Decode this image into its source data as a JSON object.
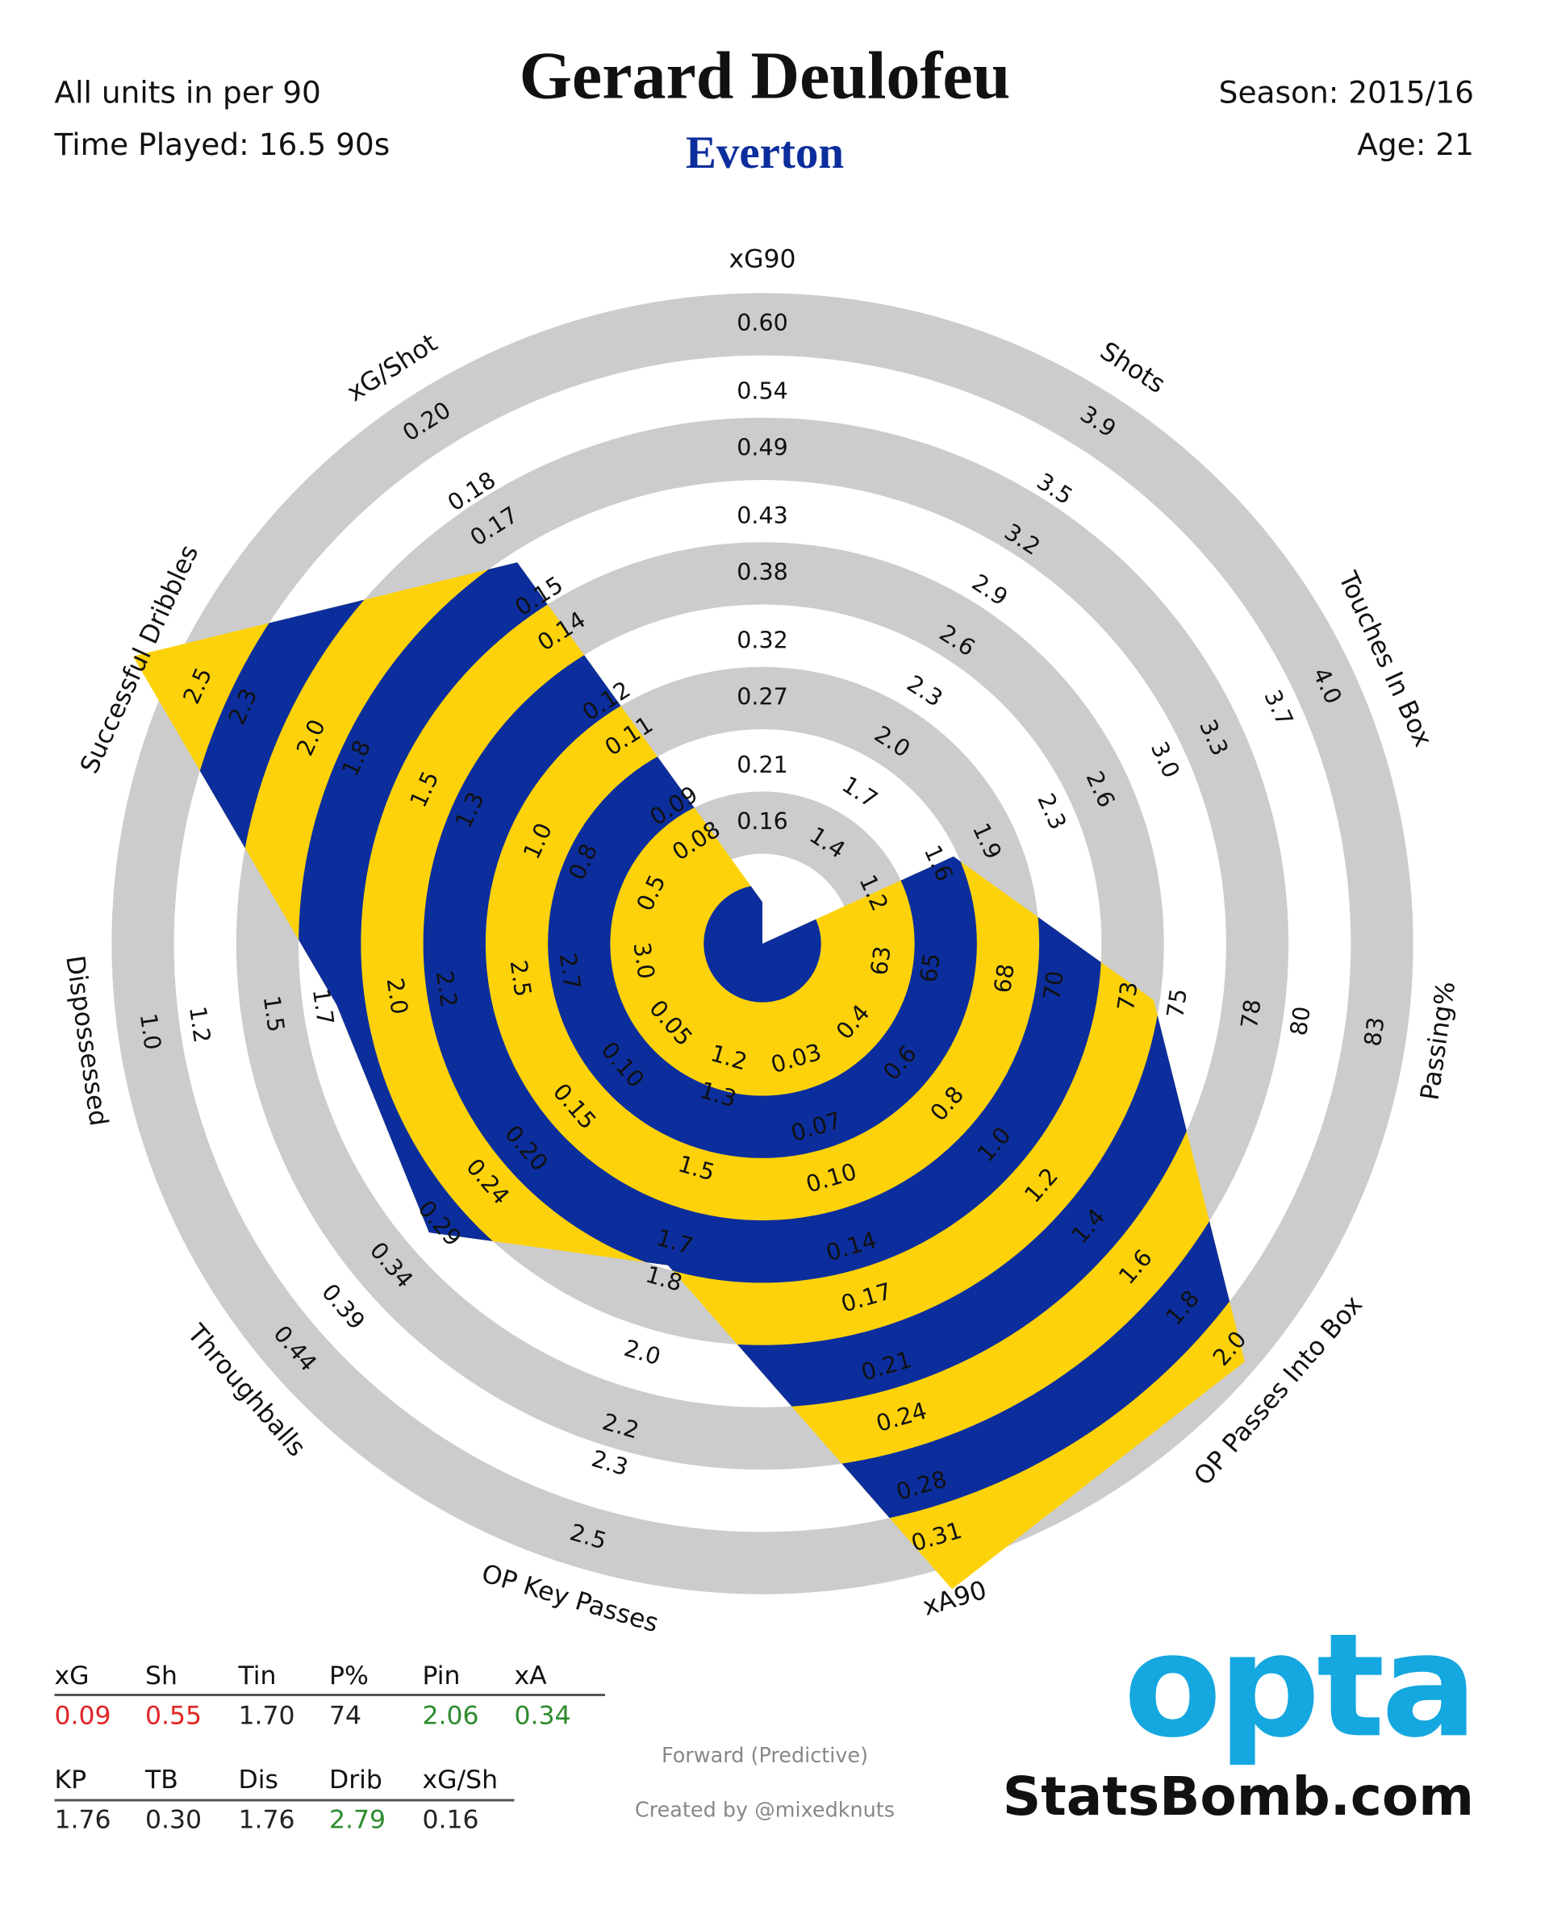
{
  "chart_data": {
    "type": "radar",
    "title": "Gerard Deulofeu",
    "subtitle": "Everton",
    "units_note": "All units in per 90",
    "time_played": "Time Played: 16.5 90s",
    "season": "Season: 2015/16",
    "age": "Age: 21",
    "role": "Forward (Predictive)",
    "credit": "Created by @mixedknuts",
    "logo": "opta",
    "site": "StatsBomb.com",
    "colors": {
      "inner": "#0c2e9c",
      "outer": "#fdd20a",
      "ring": "#cccccc",
      "logo": "#14a7e0"
    },
    "axes": [
      {
        "name": "xG90",
        "lim": [
          0.105,
          0.6
        ],
        "ticks": [
          0.16,
          0.21,
          0.27,
          0.32,
          0.38,
          0.43,
          0.49,
          0.54,
          {
            "value": 0.6,
            "label": "0.60"
          }
        ]
      },
      {
        "name": "Shots",
        "lim": [
          1.1,
          3.9
        ],
        "ticks": [
          1.4,
          1.7,
          {
            "value": 2,
            "label": "2.0"
          },
          2.3,
          2.6,
          2.9,
          3.2,
          3.5,
          3.9
        ]
      },
      {
        "name": "Touches In Box",
        "lim": [
          0.85,
          4
        ],
        "ticks": [
          1.2,
          1.6,
          1.9,
          2.3,
          2.6,
          {
            "value": 3,
            "label": "3.0"
          },
          3.3,
          3.7,
          {
            "value": 4,
            "label": "4.0"
          }
        ]
      },
      {
        "name": "Passing%",
        "lim": [
          60.5,
          83
        ],
        "ticks": [
          63,
          65,
          68,
          70,
          73,
          75,
          78,
          80,
          83
        ]
      },
      {
        "name": "OP Passes Into Box",
        "lim": [
          0.2,
          2
        ],
        "ticks": [
          0.4,
          0.6,
          0.8,
          {
            "value": 1,
            "label": "1.0"
          },
          1.2,
          1.4,
          1.6,
          1.8,
          {
            "value": 2,
            "label": "2.0"
          }
        ]
      },
      {
        "name": "xA90",
        "lim": [
          -0.005,
          0.31
        ],
        "ticks": [
          0.03,
          0.07,
          {
            "value": 0.1,
            "label": "0.10"
          },
          0.14,
          0.17,
          0.21,
          0.24,
          0.28,
          0.31
        ]
      },
      {
        "name": "OP Key Passes",
        "lim": [
          1.04,
          2.5
        ],
        "ticks": [
          1.2,
          1.3,
          1.5,
          1.7,
          1.8,
          {
            "value": 2,
            "label": "2.0"
          },
          2.2,
          2.3,
          2.5
        ]
      },
      {
        "name": "Throughballs",
        "lim": [
          0.0,
          0.44
        ],
        "ticks": [
          0.05,
          {
            "value": 0.1,
            "label": "0.10"
          },
          0.15,
          {
            "value": 0.2,
            "label": "0.20"
          },
          0.24,
          0.29,
          0.34,
          0.39,
          0.44
        ]
      },
      {
        "name": "Dispossessed",
        "lim": [
          3.25,
          1
        ],
        "ticks": [
          {
            "value": 3,
            "label": "3.0"
          },
          2.7,
          2.5,
          2.2,
          {
            "value": 2,
            "label": "2.0"
          },
          1.7,
          1.5,
          1.2,
          {
            "value": 1,
            "label": "1.0"
          }
        ]
      },
      {
        "name": "Successful Dribbles",
        "lim": [
          0.25,
          2.5
        ],
        "ticks": [
          0.5,
          0.8,
          {
            "value": 1,
            "label": "1.0"
          },
          1.3,
          1.5,
          1.8,
          {
            "value": 2,
            "label": "2.0"
          },
          2.3,
          2.5
        ]
      },
      {
        "name": "xG/Shot",
        "lim": [
          0.065,
          0.2
        ],
        "ticks": [
          0.08,
          0.09,
          0.11,
          0.12,
          0.14,
          0.15,
          0.17,
          0.18,
          {
            "value": 0.2,
            "label": "0.20"
          }
        ]
      }
    ],
    "series": [
      {
        "values": [
          0.09,
          0.55,
          1.7,
          74,
          2.06,
          0.34,
          1.76,
          0.3,
          1.76,
          2.79,
          0.16
        ],
        "value_labels": [
          "0.09",
          "0.55",
          "1.70",
          "74",
          "2.06",
          "0.34",
          "1.76",
          "0.30",
          "1.76",
          "2.79",
          "0.16"
        ],
        "abbreviations": [
          "xG",
          "Sh",
          "Tin",
          "P%",
          "Pin",
          "xA",
          "KP",
          "TB",
          "Dis",
          "Drib",
          "xG/Sh"
        ],
        "label_colors": [
          "#e02424",
          "#e02424",
          "#222222",
          "#222222",
          "#2e8b2e",
          "#2e8b2e",
          "#222222",
          "#222222",
          "#222222",
          "#2e8b2e",
          "#222222"
        ]
      }
    ]
  }
}
